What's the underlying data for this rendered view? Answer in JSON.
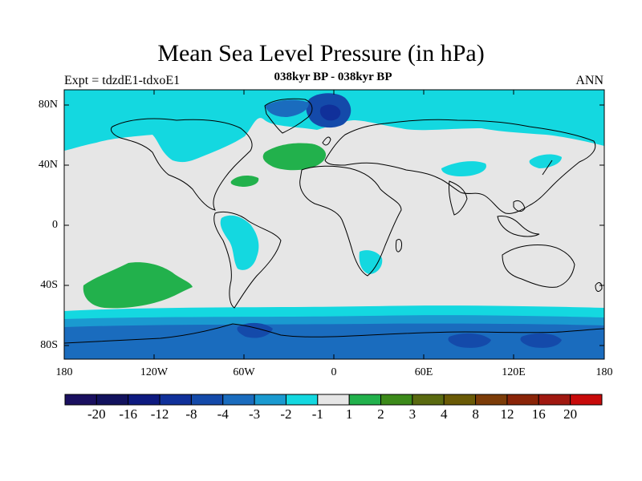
{
  "title": "Mean Sea Level Pressure (in hPa)",
  "subtitle": "038kyr BP - 038kyr BP",
  "left_label": "Expt = tdzdE1-tdxoE1",
  "right_label": "ANN",
  "lat_labels": [
    "80N",
    "40N",
    "0",
    "40S",
    "80S"
  ],
  "lon_labels": [
    "180",
    "120W",
    "60W",
    "0",
    "60E",
    "120E",
    "180"
  ],
  "colorbar": {
    "colors": [
      "#1a1060",
      "#12125e",
      "#0e1a80",
      "#10309a",
      "#144aaa",
      "#1a6cbe",
      "#1a9ad0",
      "#14d8e0",
      "#e6e6e6",
      "#22b14c",
      "#3c8a1a",
      "#5a6a10",
      "#6a5a06",
      "#7c3c08",
      "#8a2408",
      "#a01810",
      "#c80a0a"
    ],
    "labels": [
      "-20",
      "-16",
      "-12",
      "-8",
      "-4",
      "-3",
      "-2",
      "-1",
      "1",
      "2",
      "3",
      "4",
      "8",
      "12",
      "16",
      "20"
    ]
  },
  "map_colors": {
    "background": "#e6e6e6",
    "cyan": "#14d8e0",
    "sky": "#1a9ad0",
    "blue": "#1a6cbe",
    "deep": "#144aaa",
    "green": "#22b14c",
    "coast": "#000000"
  }
}
